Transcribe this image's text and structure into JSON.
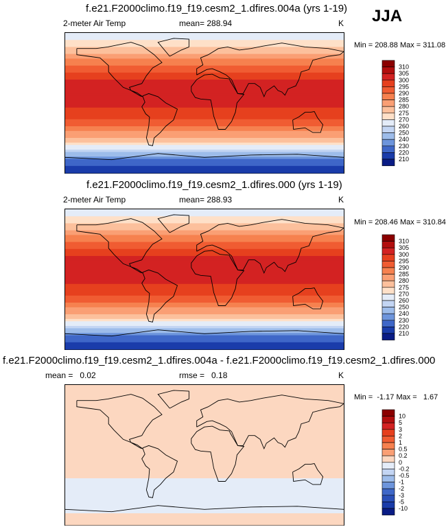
{
  "season": "JJA",
  "panels": [
    {
      "title": "f.e21.F2000climo.f19_f19.cesm2_1.dfires.004a (yrs 1-19)",
      "variable": "2-meter Air Temp",
      "mean_text": "mean= 288.94",
      "units": "K",
      "minmax_text": "Min = 208.88 Max = 311.08"
    },
    {
      "title": "f.e21.F2000climo.f19_f19.cesm2_1.dfires.000 (yrs 1-19)",
      "variable": "2-meter Air Temp",
      "mean_text": "mean= 288.93",
      "units": "K",
      "minmax_text": "Min = 208.46 Max = 310.84"
    },
    {
      "title": "f.e21.F2000climo.f19_f19.cesm2_1.dfires.004a - f.e21.F2000climo.f19_f19.cesm2_1.dfires.000",
      "mean_text": "mean =   0.02",
      "rmse_text": "rmse =   0.18",
      "units": "K",
      "minmax_text": "Min =  -1.17 Max =   1.67"
    }
  ],
  "chart_data": [
    {
      "type": "heatmap",
      "title": "f.e21.F2000climo.f19_f19.cesm2_1.dfires.004a (yrs 1-19)",
      "variable": "2-meter Air Temp",
      "units": "K",
      "mean": 288.94,
      "min": 208.88,
      "max": 311.08,
      "colorbar_levels": [
        310,
        305,
        300,
        295,
        290,
        285,
        280,
        275,
        270,
        260,
        250,
        240,
        230,
        220,
        210
      ],
      "colorbar_colors": [
        "#8b0000",
        "#b20e0e",
        "#d32222",
        "#e6401e",
        "#f05c32",
        "#f6814f",
        "#fa9f74",
        "#fcc09c",
        "#fee0c8",
        "#e4ecf8",
        "#c3d5f3",
        "#9dbcea",
        "#6d95dc",
        "#3f67c8",
        "#1a3caa",
        "#0a1c85"
      ],
      "lat_profile": [
        [
          90,
          262
        ],
        [
          80,
          270
        ],
        [
          70,
          276
        ],
        [
          60,
          283
        ],
        [
          50,
          288
        ],
        [
          40,
          295
        ],
        [
          30,
          300
        ],
        [
          20,
          303
        ],
        [
          10,
          303
        ],
        [
          0,
          302
        ],
        [
          -10,
          299
        ],
        [
          -20,
          296
        ],
        [
          -30,
          290
        ],
        [
          -40,
          283
        ],
        [
          -50,
          276
        ],
        [
          -60,
          262
        ],
        [
          -70,
          233
        ],
        [
          -80,
          220
        ],
        [
          -90,
          214
        ]
      ]
    },
    {
      "type": "heatmap",
      "title": "f.e21.F2000climo.f19_f19.cesm2_1.dfires.000 (yrs 1-19)",
      "variable": "2-meter Air Temp",
      "units": "K",
      "mean": 288.93,
      "min": 208.46,
      "max": 310.84,
      "colorbar_levels": [
        310,
        305,
        300,
        295,
        290,
        285,
        280,
        275,
        270,
        260,
        250,
        240,
        230,
        220,
        210
      ],
      "colorbar_colors": [
        "#8b0000",
        "#b20e0e",
        "#d32222",
        "#e6401e",
        "#f05c32",
        "#f6814f",
        "#fa9f74",
        "#fcc09c",
        "#fee0c8",
        "#e4ecf8",
        "#c3d5f3",
        "#9dbcea",
        "#6d95dc",
        "#3f67c8",
        "#1a3caa",
        "#0a1c85"
      ],
      "lat_profile": [
        [
          90,
          262
        ],
        [
          80,
          270
        ],
        [
          70,
          276
        ],
        [
          60,
          283
        ],
        [
          50,
          288
        ],
        [
          40,
          295
        ],
        [
          30,
          300
        ],
        [
          20,
          303
        ],
        [
          10,
          303
        ],
        [
          0,
          302
        ],
        [
          -10,
          299
        ],
        [
          -20,
          296
        ],
        [
          -30,
          290
        ],
        [
          -40,
          283
        ],
        [
          -50,
          276
        ],
        [
          -60,
          262
        ],
        [
          -70,
          233
        ],
        [
          -80,
          220
        ],
        [
          -90,
          214
        ]
      ]
    },
    {
      "type": "heatmap",
      "title": "f.e21.F2000climo.f19_f19.cesm2_1.dfires.004a - f.e21.F2000climo.f19_f19.cesm2_1.dfires.000",
      "units": "K",
      "mean": 0.02,
      "rmse": 0.18,
      "min": -1.17,
      "max": 1.67,
      "colorbar_levels": [
        "10",
        "5",
        "3",
        "2",
        "1",
        "0.5",
        "0.2",
        "0",
        "-0.2",
        "-0.5",
        "-1",
        "-2",
        "-3",
        "-5",
        "-10"
      ],
      "colorbar_colors": [
        "#8b0000",
        "#b20e0e",
        "#d32222",
        "#e6401e",
        "#f05c32",
        "#f6814f",
        "#fa9f74",
        "#fcd7c0",
        "#e4ecf8",
        "#c3d5f3",
        "#9dbcea",
        "#6d95dc",
        "#3f67c8",
        "#2a4fb8",
        "#1a3caa",
        "#0a1c85"
      ],
      "lat_profile": [
        [
          90,
          0.1
        ],
        [
          60,
          0.2
        ],
        [
          30,
          0.1
        ],
        [
          0,
          0.05
        ],
        [
          -30,
          0.0
        ],
        [
          -60,
          -0.1
        ],
        [
          -90,
          0.1
        ]
      ]
    }
  ]
}
